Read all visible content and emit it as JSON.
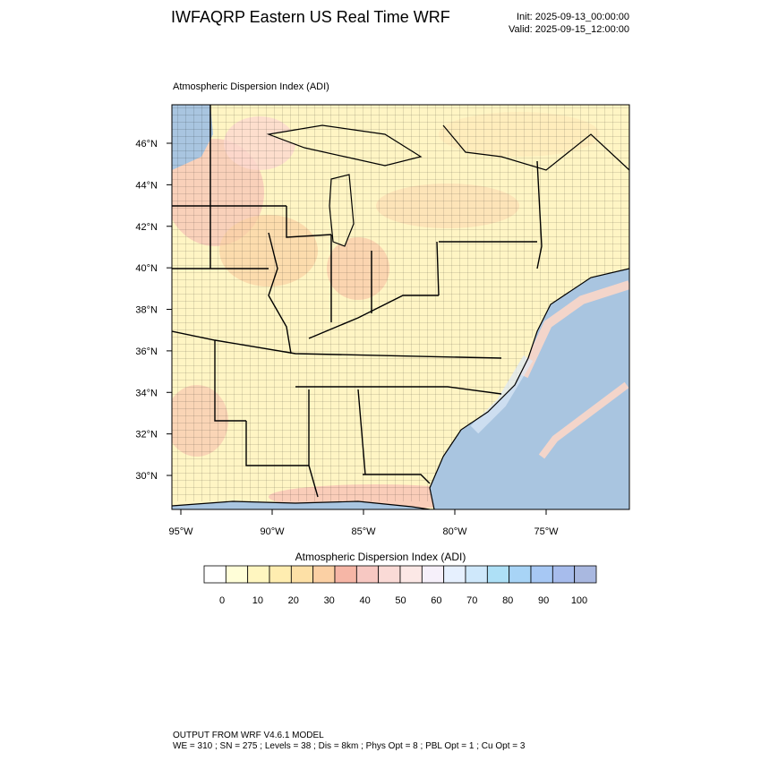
{
  "header": {
    "title": "IWFAQRP Eastern US Real Time WRF",
    "init": "Init: 2025-09-13_00:00:00",
    "valid": "Valid: 2025-09-15_12:00:00"
  },
  "map": {
    "subtitle": "Atmospheric Dispersion Index   (ADI)",
    "lat_labels": [
      "46°N",
      "44°N",
      "42°N",
      "40°N",
      "38°N",
      "36°N",
      "34°N",
      "32°N",
      "30°N"
    ],
    "lat_values": [
      46,
      44,
      42,
      40,
      38,
      36,
      34,
      32,
      30
    ],
    "lon_labels": [
      "95°W",
      "90°W",
      "85°W",
      "80°W",
      "75°W"
    ],
    "lon_values": [
      -95,
      -90,
      -85,
      -80,
      -75
    ],
    "colors": {
      "land_base": "#fff5c4",
      "ocean": "#a9c5e0",
      "boundary": "#000000"
    }
  },
  "colorbar": {
    "title": "Atmospheric Dispersion Index  (ADI)",
    "labels": [
      "0",
      "10",
      "20",
      "30",
      "40",
      "50",
      "60",
      "70",
      "80",
      "90",
      "100"
    ],
    "colors": [
      "#ffffff",
      "#fffed8",
      "#fff6c0",
      "#ffedb0",
      "#fde0a6",
      "#fbd0a4",
      "#f6b6a6",
      "#f7c8c2",
      "#fadad6",
      "#fce8e6",
      "#f6f0fa",
      "#e6f0fe",
      "#cfe8fb",
      "#aee0f6",
      "#a8d4f6",
      "#a7c8f4",
      "#a7bcec",
      "#a9b8e0"
    ]
  },
  "footer": {
    "line1": "OUTPUT FROM WRF V4.6.1 MODEL",
    "line2": "WE = 310 ; SN = 275 ; Levels = 38 ; Dis = 8km ; Phys Opt = 8 ; PBL Opt = 1 ; Cu Opt = 3"
  }
}
